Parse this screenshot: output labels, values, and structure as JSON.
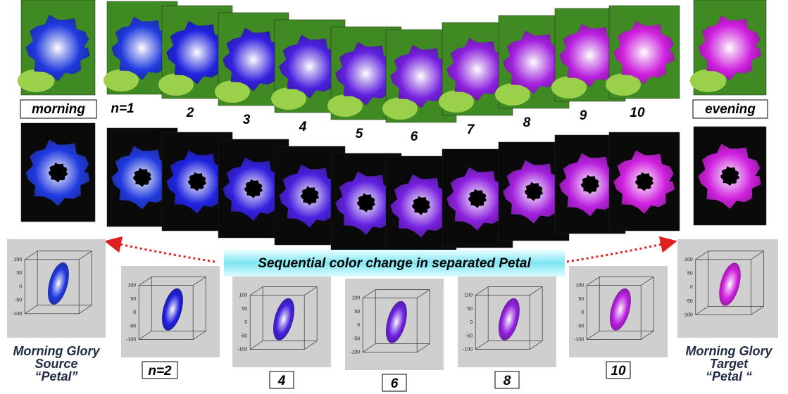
{
  "top_row": {
    "source_label": "morning",
    "target_label": "evening",
    "sequence_labels": [
      "n=1",
      "2",
      "3",
      "4",
      "5",
      "6",
      "7",
      "8",
      "9",
      "10"
    ]
  },
  "banner": "Sequential color change in separated Petal",
  "source_caption": [
    "Morning Glory",
    "Source",
    "“Petal”"
  ],
  "target_caption": [
    "Morning Glory",
    "Target",
    "“Petal “"
  ],
  "plot_labels": [
    "n=2",
    "4",
    "6",
    "8",
    "10"
  ],
  "plot_ticks": [
    "100",
    "50",
    "0",
    "-50",
    "-100"
  ]
}
